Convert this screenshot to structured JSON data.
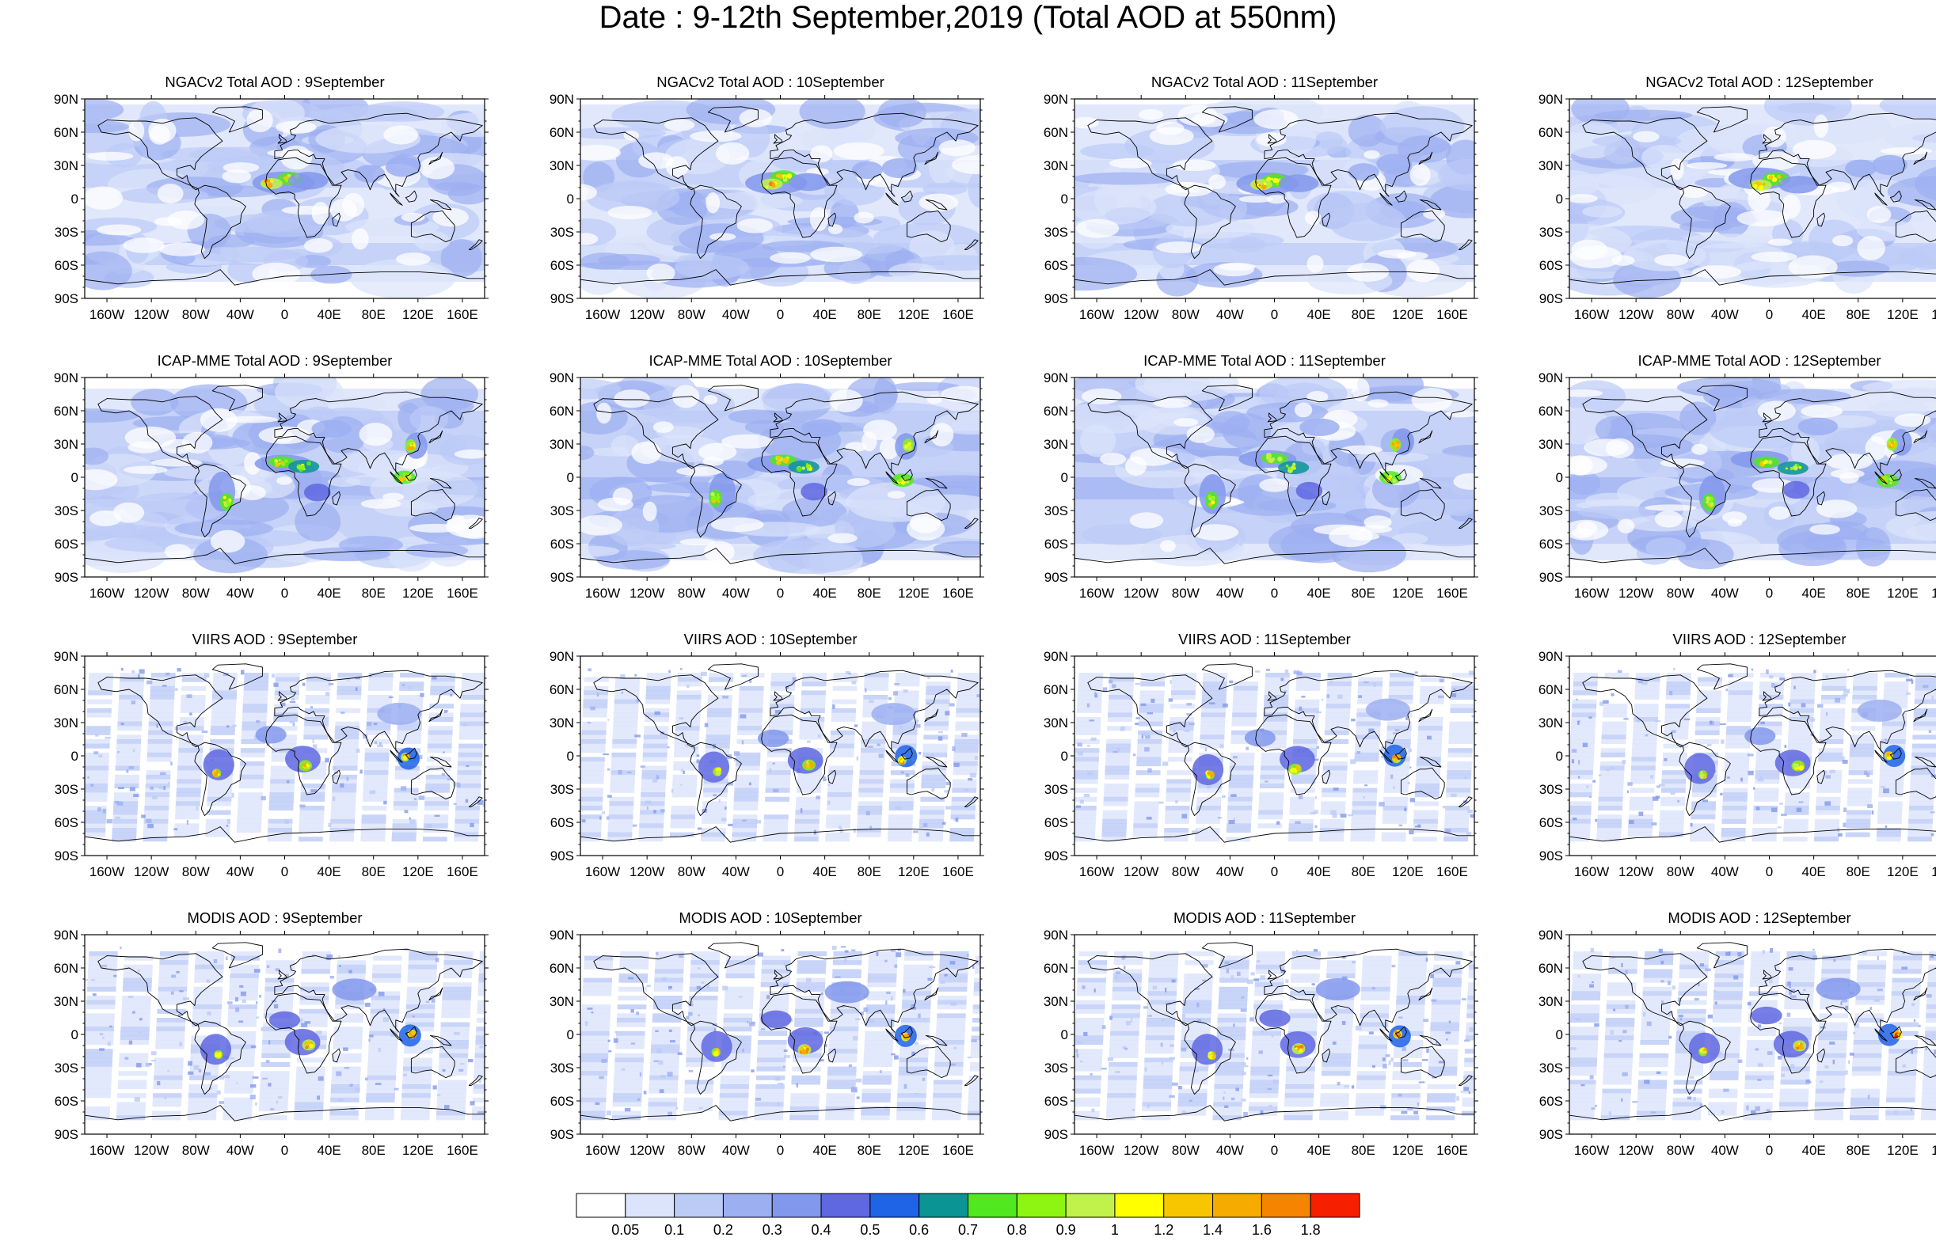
{
  "title": "Date : 9-12th September,2019 (Total AOD at 550nm)",
  "lat_ticks": [
    "90N",
    "60N",
    "30N",
    "0",
    "30S",
    "60S",
    "90S"
  ],
  "lon_ticks": [
    "160W",
    "120W",
    "80W",
    "40W",
    "0",
    "40E",
    "80E",
    "120E",
    "160E"
  ],
  "colors": {
    "land_outline": "#000000",
    "plume": [
      "#ffffff",
      "#dce4fb",
      "#bccaf6",
      "#9caff1",
      "#8298ec",
      "#5f67e1",
      "#1f63e6",
      "#0b9494",
      "#52e820",
      "#8ef512",
      "#c1f24b",
      "#ffff00",
      "#f7c600",
      "#f6ab00",
      "#f68400",
      "#f62000"
    ]
  },
  "rows": [
    {
      "product": "NGACv2",
      "panels": [
        {
          "title": "NGACv2 Total AOD : 9September"
        },
        {
          "title": "NGACv2 Total AOD : 10September"
        },
        {
          "title": "NGACv2 Total AOD : 11September"
        },
        {
          "title": "NGACv2 Total AOD : 12September"
        }
      ]
    },
    {
      "product": "ICAP-MME",
      "panels": [
        {
          "title": "ICAP-MME Total AOD : 9September"
        },
        {
          "title": "ICAP-MME Total AOD : 10September"
        },
        {
          "title": "ICAP-MME Total AOD : 11September"
        },
        {
          "title": "ICAP-MME Total AOD : 12September"
        }
      ]
    },
    {
      "product": "VIIRS",
      "panels": [
        {
          "title": "VIIRS AOD : 9September"
        },
        {
          "title": "VIIRS AOD : 10September"
        },
        {
          "title": "VIIRS AOD : 11September"
        },
        {
          "title": "VIIRS AOD : 12September"
        }
      ]
    },
    {
      "product": "MODIS",
      "panels": [
        {
          "title": "MODIS AOD : 9September"
        },
        {
          "title": "MODIS AOD : 10September"
        },
        {
          "title": "MODIS AOD : 11September"
        },
        {
          "title": "MODIS AOD : 12September"
        }
      ]
    }
  ],
  "colorbar": {
    "labels": [
      "0.05",
      "0.1",
      "0.2",
      "0.3",
      "0.4",
      "0.5",
      "0.6",
      "0.7",
      "0.8",
      "0.9",
      "1",
      "1.2",
      "1.4",
      "1.6",
      "1.8"
    ],
    "colors": [
      "#ffffff",
      "#dce4fb",
      "#bccaf6",
      "#9caff1",
      "#8298ec",
      "#5f67e1",
      "#1f63e6",
      "#0b9494",
      "#52e820",
      "#8ef512",
      "#c1f24b",
      "#ffff00",
      "#f7c600",
      "#f6ab00",
      "#f68400",
      "#f62000"
    ]
  }
}
